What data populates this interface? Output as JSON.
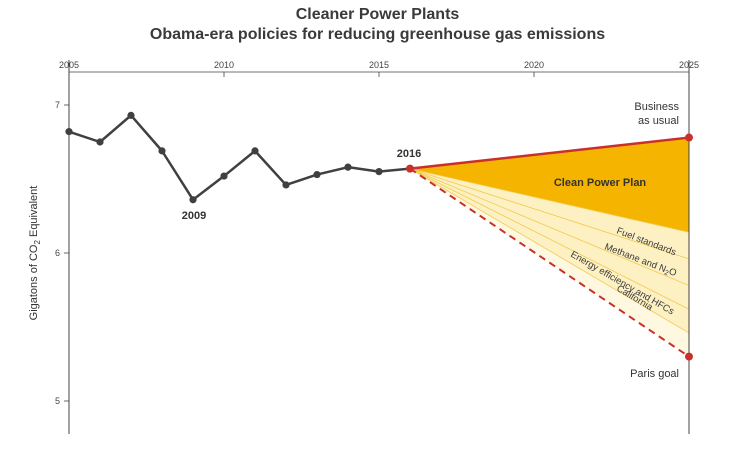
{
  "header": {
    "title": "Cleaner Power Plants",
    "subtitle": "Obama-era policies for reducing greenhouse gas emissions"
  },
  "chart_data": {
    "type": "line",
    "title": "Cleaner Power Plants",
    "subtitle": "Obama-era policies for reducing greenhouse gas emissions",
    "ylabel": "Gigatons of CO2 Equivalent",
    "ylabel_parts": [
      "Gigatons of CO",
      "2",
      " Equivalent"
    ],
    "xlim": [
      2005,
      2025
    ],
    "ylim": [
      4.8,
      7.2
    ],
    "x_ticks": [
      "2005",
      "2010",
      "2015",
      "2020",
      "2025"
    ],
    "y_ticks": [
      "5",
      "6",
      "7"
    ],
    "grid": false,
    "colors": {
      "history": "#404040",
      "bau": "#c9302c",
      "cpp_fill": "#f5b400",
      "bands_fill": "#fdf1c4",
      "band_lines": "#f2c94c",
      "paris": "#c9302c",
      "axis": "#444444"
    },
    "series": [
      {
        "name": "historical",
        "x": [
          2005,
          2006,
          2007,
          2008,
          2009,
          2010,
          2011,
          2012,
          2013,
          2014,
          2015,
          2016
        ],
        "y": [
          6.82,
          6.75,
          6.93,
          6.69,
          6.36,
          6.52,
          6.69,
          6.46,
          6.53,
          6.58,
          6.55,
          6.57
        ]
      },
      {
        "name": "Business as usual",
        "x": [
          2016,
          2025
        ],
        "y": [
          6.57,
          6.78
        ]
      },
      {
        "name": "Paris goal",
        "x": [
          2016,
          2025
        ],
        "y": [
          6.57,
          5.3
        ]
      }
    ],
    "wedges": [
      {
        "name": "Clean Power Plan",
        "end_top": 6.78,
        "end_bottom": 6.14
      },
      {
        "name": "Fuel standards",
        "end_top": 6.14,
        "end_bottom": 5.96
      },
      {
        "name": "Methane and N2O",
        "end_top": 5.96,
        "end_bottom": 5.78
      },
      {
        "name": "Energy efficiency and HFCs",
        "end_top": 5.78,
        "end_bottom": 5.62
      },
      {
        "name": "California",
        "end_top": 5.62,
        "end_bottom": 5.46
      }
    ],
    "annotations": {
      "year_2009": "2009",
      "year_2016": "2016",
      "bau_line1": "Business",
      "bau_line2": "as usual",
      "cpp": "Clean Power Plan",
      "fuel": "Fuel standards",
      "methane_parts": [
        "Methane and N",
        "2",
        "O"
      ],
      "energy": "Energy efficiency and HFCs",
      "california": "California",
      "paris": "Paris goal"
    }
  }
}
